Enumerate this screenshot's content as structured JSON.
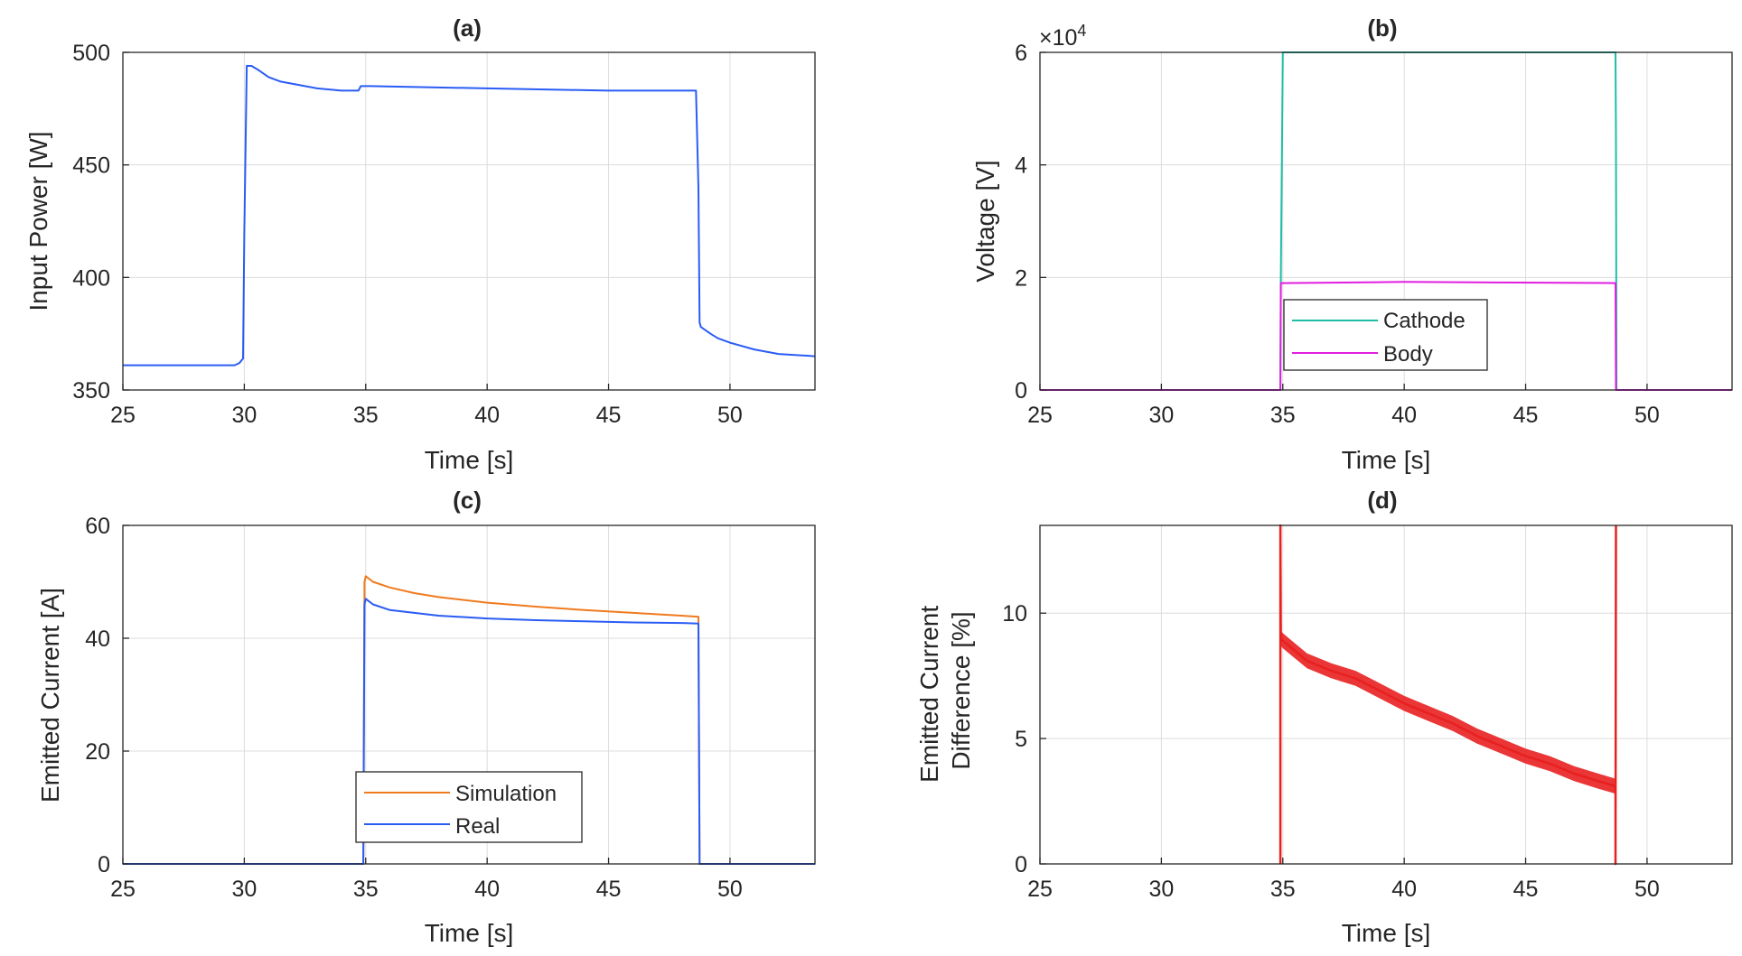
{
  "chart_data": [
    {
      "id": "a",
      "type": "line",
      "title": "(a)",
      "xlabel": "Time [s]",
      "ylabel": "Input Power [W]",
      "xlim": [
        25,
        53.5
      ],
      "ylim": [
        350,
        500
      ],
      "xticks": [
        25,
        30,
        35,
        40,
        45,
        50
      ],
      "yticks": [
        350,
        400,
        450,
        500
      ],
      "grid": true,
      "series": [
        {
          "name": "Input Power",
          "color": "#2a5cf5",
          "x": [
            25,
            29.6,
            29.8,
            29.95,
            30.0,
            30.1,
            30.3,
            30.6,
            31.0,
            31.5,
            32.0,
            33.0,
            34.0,
            34.7,
            34.8,
            35.2,
            40.0,
            45.0,
            48.6,
            48.7,
            48.75,
            48.8,
            49.2,
            49.5,
            50.0,
            51.0,
            52.0,
            53.5
          ],
          "values": [
            361,
            361,
            362,
            364,
            420,
            494,
            494,
            492,
            489,
            487,
            486,
            484,
            483,
            483,
            485,
            485,
            484,
            483,
            483,
            440,
            380,
            378,
            375,
            373,
            371,
            368,
            366,
            365
          ]
        }
      ]
    },
    {
      "id": "b",
      "type": "line",
      "title": "(b)",
      "xlabel": "Time [s]",
      "ylabel": "Voltage [V]",
      "multiplier_base": "×10",
      "multiplier_exp": "4",
      "xlim": [
        25,
        53.5
      ],
      "ylim": [
        0,
        6
      ],
      "xticks": [
        25,
        30,
        35,
        40,
        45,
        50
      ],
      "yticks": [
        0,
        2,
        4,
        6
      ],
      "grid": true,
      "legend": {
        "position": "lower-left-inside"
      },
      "series": [
        {
          "name": "Cathode",
          "color": "#1ebea5",
          "x": [
            25,
            34.9,
            34.92,
            35.0,
            48.7,
            48.72,
            48.74,
            53.5
          ],
          "values": [
            0,
            0,
            2.0,
            6.0,
            6.0,
            4.5,
            0,
            0
          ]
        },
        {
          "name": "Body",
          "color": "#e01ee0",
          "x": [
            25,
            34.9,
            34.92,
            35.0,
            40.0,
            48.7,
            48.72,
            53.5
          ],
          "values": [
            0,
            0,
            1.9,
            1.9,
            1.92,
            1.9,
            0,
            0
          ]
        }
      ]
    },
    {
      "id": "c",
      "type": "line",
      "title": "(c)",
      "xlabel": "Time [s]",
      "ylabel": "Emitted Current [A]",
      "xlim": [
        25,
        53.5
      ],
      "ylim": [
        0,
        60
      ],
      "xticks": [
        25,
        30,
        35,
        40,
        45,
        50
      ],
      "yticks": [
        0,
        20,
        40,
        60
      ],
      "grid": true,
      "legend": {
        "position": "bottom-center"
      },
      "series": [
        {
          "name": "Simulation",
          "color": "#f07a1e",
          "x": [
            25,
            34.9,
            34.95,
            35.0,
            35.3,
            36.0,
            37.0,
            38.0,
            40.0,
            42.0,
            44.0,
            46.0,
            48.0,
            48.7,
            48.75,
            53.5
          ],
          "values": [
            0,
            0,
            50,
            51,
            50,
            49,
            48,
            47.3,
            46.3,
            45.6,
            45,
            44.5,
            44,
            43.8,
            0,
            0
          ]
        },
        {
          "name": "Real",
          "color": "#2a5cf5",
          "x": [
            25,
            34.9,
            34.95,
            35.0,
            35.3,
            36.0,
            37.0,
            38.0,
            40.0,
            42.0,
            44.0,
            46.0,
            48.0,
            48.7,
            48.75,
            53.5
          ],
          "values": [
            0,
            0,
            46,
            47,
            46,
            45,
            44.5,
            44,
            43.5,
            43.2,
            43,
            42.8,
            42.7,
            42.6,
            0,
            0
          ]
        }
      ]
    },
    {
      "id": "d",
      "type": "line",
      "title": "(d)",
      "xlabel": "Time [s]",
      "ylabel_lines": [
        "Emitted Current",
        "Difference [%]"
      ],
      "xlim": [
        25,
        53.5
      ],
      "ylim": [
        0,
        13.5
      ],
      "xticks": [
        25,
        30,
        35,
        40,
        45,
        50
      ],
      "yticks": [
        0,
        5,
        10
      ],
      "grid": true,
      "series": [
        {
          "name": "Difference",
          "color": "#e82020",
          "x": [
            34.9,
            34.9,
            34.92,
            35.0,
            35.5,
            36.0,
            37.0,
            38.0,
            39.0,
            40.0,
            41.0,
            42.0,
            43.0,
            44.0,
            45.0,
            46.0,
            47.0,
            48.0,
            48.7,
            48.7,
            48.72
          ],
          "values": [
            0,
            13.5,
            9,
            8.9,
            8.5,
            8.1,
            7.7,
            7.4,
            6.9,
            6.4,
            6.0,
            5.6,
            5.1,
            4.7,
            4.3,
            4.0,
            3.6,
            3.3,
            3.1,
            0,
            13.5
          ],
          "band": 0.3
        }
      ]
    }
  ]
}
